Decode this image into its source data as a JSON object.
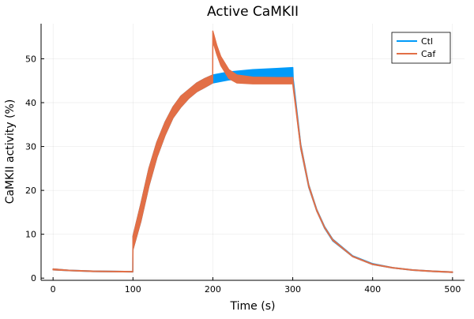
{
  "chart_data": {
    "type": "line",
    "title": "Active CaMKII",
    "xlabel": "Time (s)",
    "ylabel": "CaMKII activity (%)",
    "xlim": [
      -15,
      515
    ],
    "ylim": [
      -0.5,
      58
    ],
    "xticks": [
      0,
      100,
      200,
      300,
      400,
      500
    ],
    "yticks": [
      0,
      10,
      20,
      30,
      40,
      50
    ],
    "grid": true,
    "legend": "top-right",
    "series": [
      {
        "name": "Ctl",
        "color": "#009af9",
        "x": [
          0,
          20,
          50,
          99.8,
          100,
          110,
          120,
          130,
          140,
          150,
          160,
          170,
          180,
          190,
          200,
          220,
          250,
          280,
          300,
          300.5,
          310,
          320,
          330,
          340,
          350,
          375,
          400,
          425,
          450,
          475,
          500
        ],
        "upper": [
          2.1,
          1.8,
          1.6,
          1.5,
          9.5,
          17,
          25,
          31,
          35.5,
          39,
          41.5,
          43,
          44.5,
          45.5,
          46.3,
          47,
          47.5,
          47.8,
          48,
          45.5,
          30.5,
          21.3,
          15.7,
          11.7,
          8.9,
          5.1,
          3.3,
          2.4,
          1.9,
          1.6,
          1.4
        ],
        "lower": [
          1.9,
          1.7,
          1.5,
          1.4,
          6.5,
          13,
          21,
          27.5,
          32.5,
          36.5,
          39,
          41,
          42.5,
          43.5,
          44.5,
          45.2,
          45.6,
          45.8,
          45.9,
          44.5,
          29.5,
          20.7,
          15.3,
          11.3,
          8.5,
          4.9,
          3.1,
          2.3,
          1.8,
          1.5,
          1.3
        ]
      },
      {
        "name": "Caf",
        "color": "#e26f46",
        "x": [
          0,
          20,
          50,
          99.8,
          100,
          110,
          120,
          130,
          140,
          150,
          160,
          170,
          180,
          190,
          199.8,
          200,
          205,
          210,
          220,
          230,
          250,
          280,
          300,
          300.5,
          310,
          320,
          330,
          340,
          350,
          375,
          400,
          425,
          450,
          475,
          500
        ],
        "upper": [
          2.1,
          1.8,
          1.6,
          1.5,
          9.5,
          17,
          25,
          31,
          35.5,
          39,
          41.5,
          43,
          44.5,
          45.5,
          46.3,
          56.3,
          53,
          50.5,
          47.5,
          46.3,
          45.8,
          45.7,
          45.7,
          44.5,
          30.3,
          21.2,
          15.6,
          11.6,
          8.8,
          5.0,
          3.2,
          2.4,
          1.9,
          1.6,
          1.4
        ],
        "lower": [
          1.9,
          1.7,
          1.5,
          1.4,
          6.5,
          13,
          21,
          27.5,
          32.5,
          36.5,
          39,
          41,
          42.5,
          43.5,
          44.5,
          54,
          51,
          48.5,
          45.5,
          44.5,
          44.3,
          44.3,
          44.3,
          43.5,
          29.6,
          20.8,
          15.3,
          11.4,
          8.6,
          4.9,
          3.1,
          2.3,
          1.8,
          1.5,
          1.3
        ]
      }
    ]
  }
}
